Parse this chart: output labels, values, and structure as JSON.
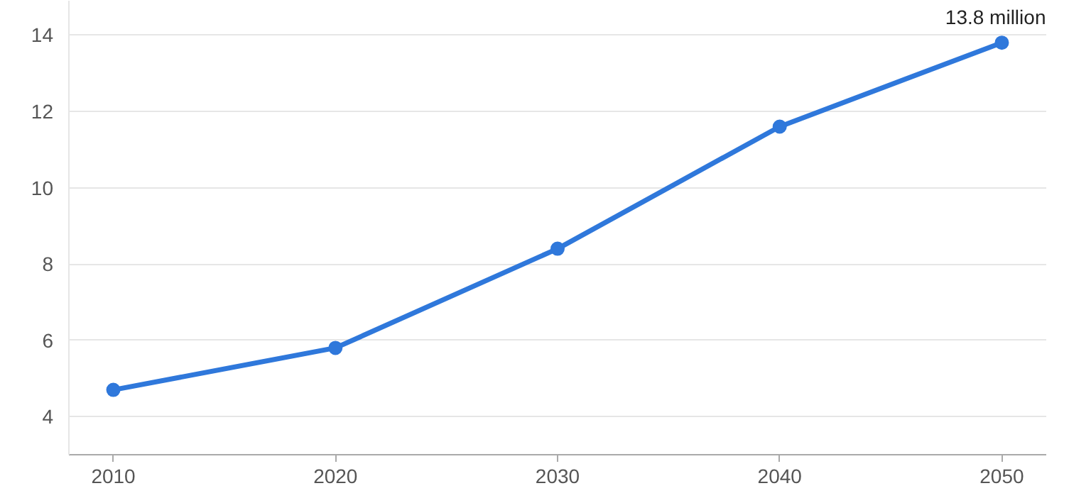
{
  "chart_data": {
    "type": "line",
    "x": [
      2010,
      2020,
      2030,
      2040,
      2050
    ],
    "series": [
      {
        "color": "#2f78db",
        "values": [
          4.7,
          5.8,
          8.4,
          11.6,
          13.8
        ]
      }
    ],
    "xlim": [
      2008,
      2052
    ],
    "xticks": [
      2010,
      2020,
      2030,
      2040,
      2050
    ],
    "ylim": [
      3,
      14.9
    ],
    "yticks": [
      4,
      6,
      8,
      10,
      12,
      14
    ],
    "annotations": [
      {
        "text": "13.8 million",
        "x": 2050,
        "y": 13.8
      }
    ],
    "grid": "y",
    "marker": "circle",
    "line_style": "solid"
  }
}
